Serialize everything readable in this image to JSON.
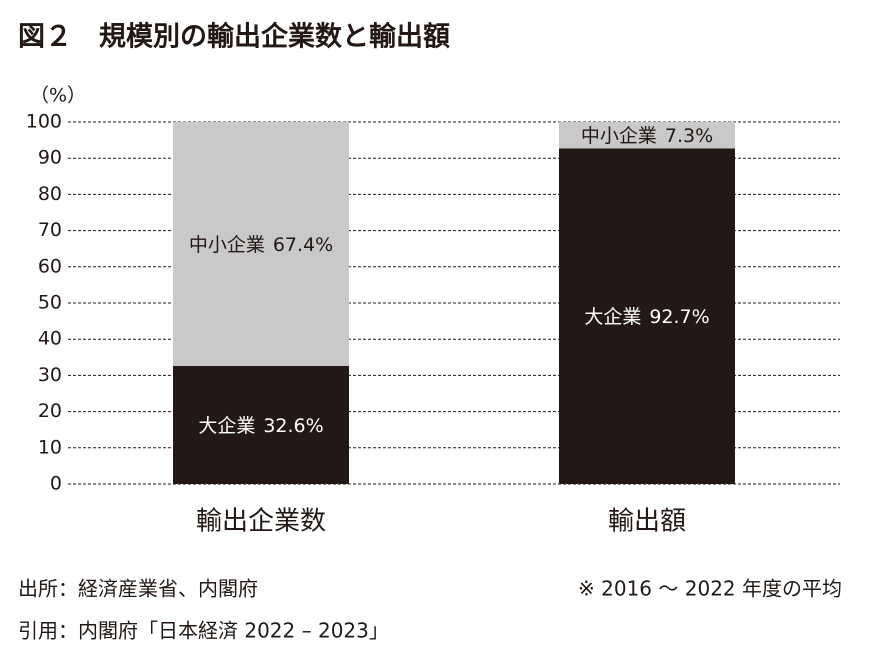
{
  "chart_data": {
    "type": "stacked_bar",
    "title": "図２　規模別の輸出企業数と輸出額",
    "y_label": "（%）",
    "categories": [
      "輸出企業数",
      "輸出額"
    ],
    "series": [
      {
        "name": "大企業",
        "color": "#231815",
        "label_color": "#ffffff",
        "values": [
          32.6,
          92.7
        ],
        "value_labels": [
          "32.6%",
          "92.7%"
        ]
      },
      {
        "name": "中小企業",
        "color": "#c9c9c9",
        "label_color": "#231815",
        "values": [
          67.4,
          7.3
        ],
        "value_labels": [
          "67.4%",
          "7.3%"
        ]
      }
    ],
    "ylim": [
      0,
      100
    ],
    "yticks": [
      0,
      10,
      20,
      30,
      40,
      50,
      60,
      70,
      80,
      90,
      100
    ],
    "grid": true,
    "source": "出所：経済産業省、内閣府",
    "note": "※ 2016 ～ 2022 年度の平均",
    "citation": "引用：内閣府「日本経済 2022 – 2023」"
  }
}
